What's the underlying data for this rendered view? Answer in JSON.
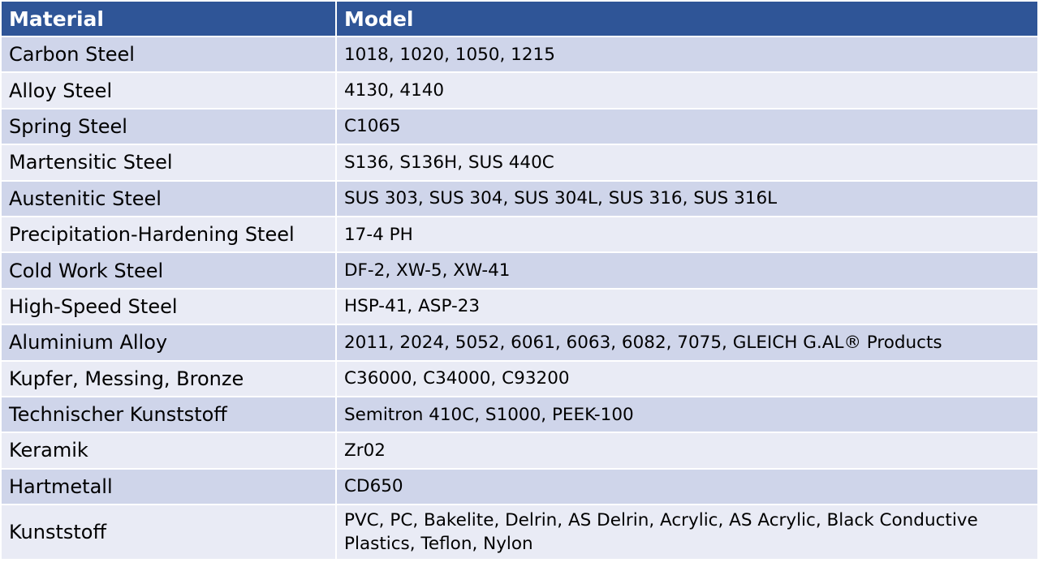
{
  "header": {
    "material": "Material",
    "model": "Model"
  },
  "colors": {
    "header_bg": "#2F5597",
    "row_dark": "#CFD5EA",
    "row_light": "#E9EBF5"
  },
  "rows": [
    {
      "material": "Carbon Steel",
      "model": "1018, 1020, 1050, 1215"
    },
    {
      "material": "Alloy Steel",
      "model": "4130, 4140"
    },
    {
      "material": "Spring Steel",
      "model": "C1065"
    },
    {
      "material": "Martensitic Steel",
      "model": "S136, S136H, SUS 440C"
    },
    {
      "material": "Austenitic Steel",
      "model": "SUS 303, SUS 304, SUS 304L, SUS 316, SUS 316L"
    },
    {
      "material": "Precipitation-Hardening Steel",
      "model": "17-4 PH"
    },
    {
      "material": "Cold Work Steel",
      "model": "DF-2, XW-5, XW-41"
    },
    {
      "material": "High-Speed Steel",
      "model": "HSP-41, ASP-23"
    },
    {
      "material": "Aluminium Alloy",
      "model": "2011, 2024, 5052, 6061, 6063, 6082, 7075, GLEICH G.AL® Products"
    },
    {
      "material": "Kupfer, Messing, Bronze",
      "model": "C36000, C34000, C93200"
    },
    {
      "material": "Technischer Kunststoff",
      "model": "Semitron 410C, S1000, PEEK-100"
    },
    {
      "material": "Keramik",
      "model": "Zr02"
    },
    {
      "material": "Hartmetall",
      "model": "CD650"
    },
    {
      "material": "Kunststoff",
      "model": "PVC, PC, Bakelite, Delrin, AS Delrin, Acrylic, AS Acrylic, Black Conductive Plastics, Teflon, Nylon"
    }
  ]
}
